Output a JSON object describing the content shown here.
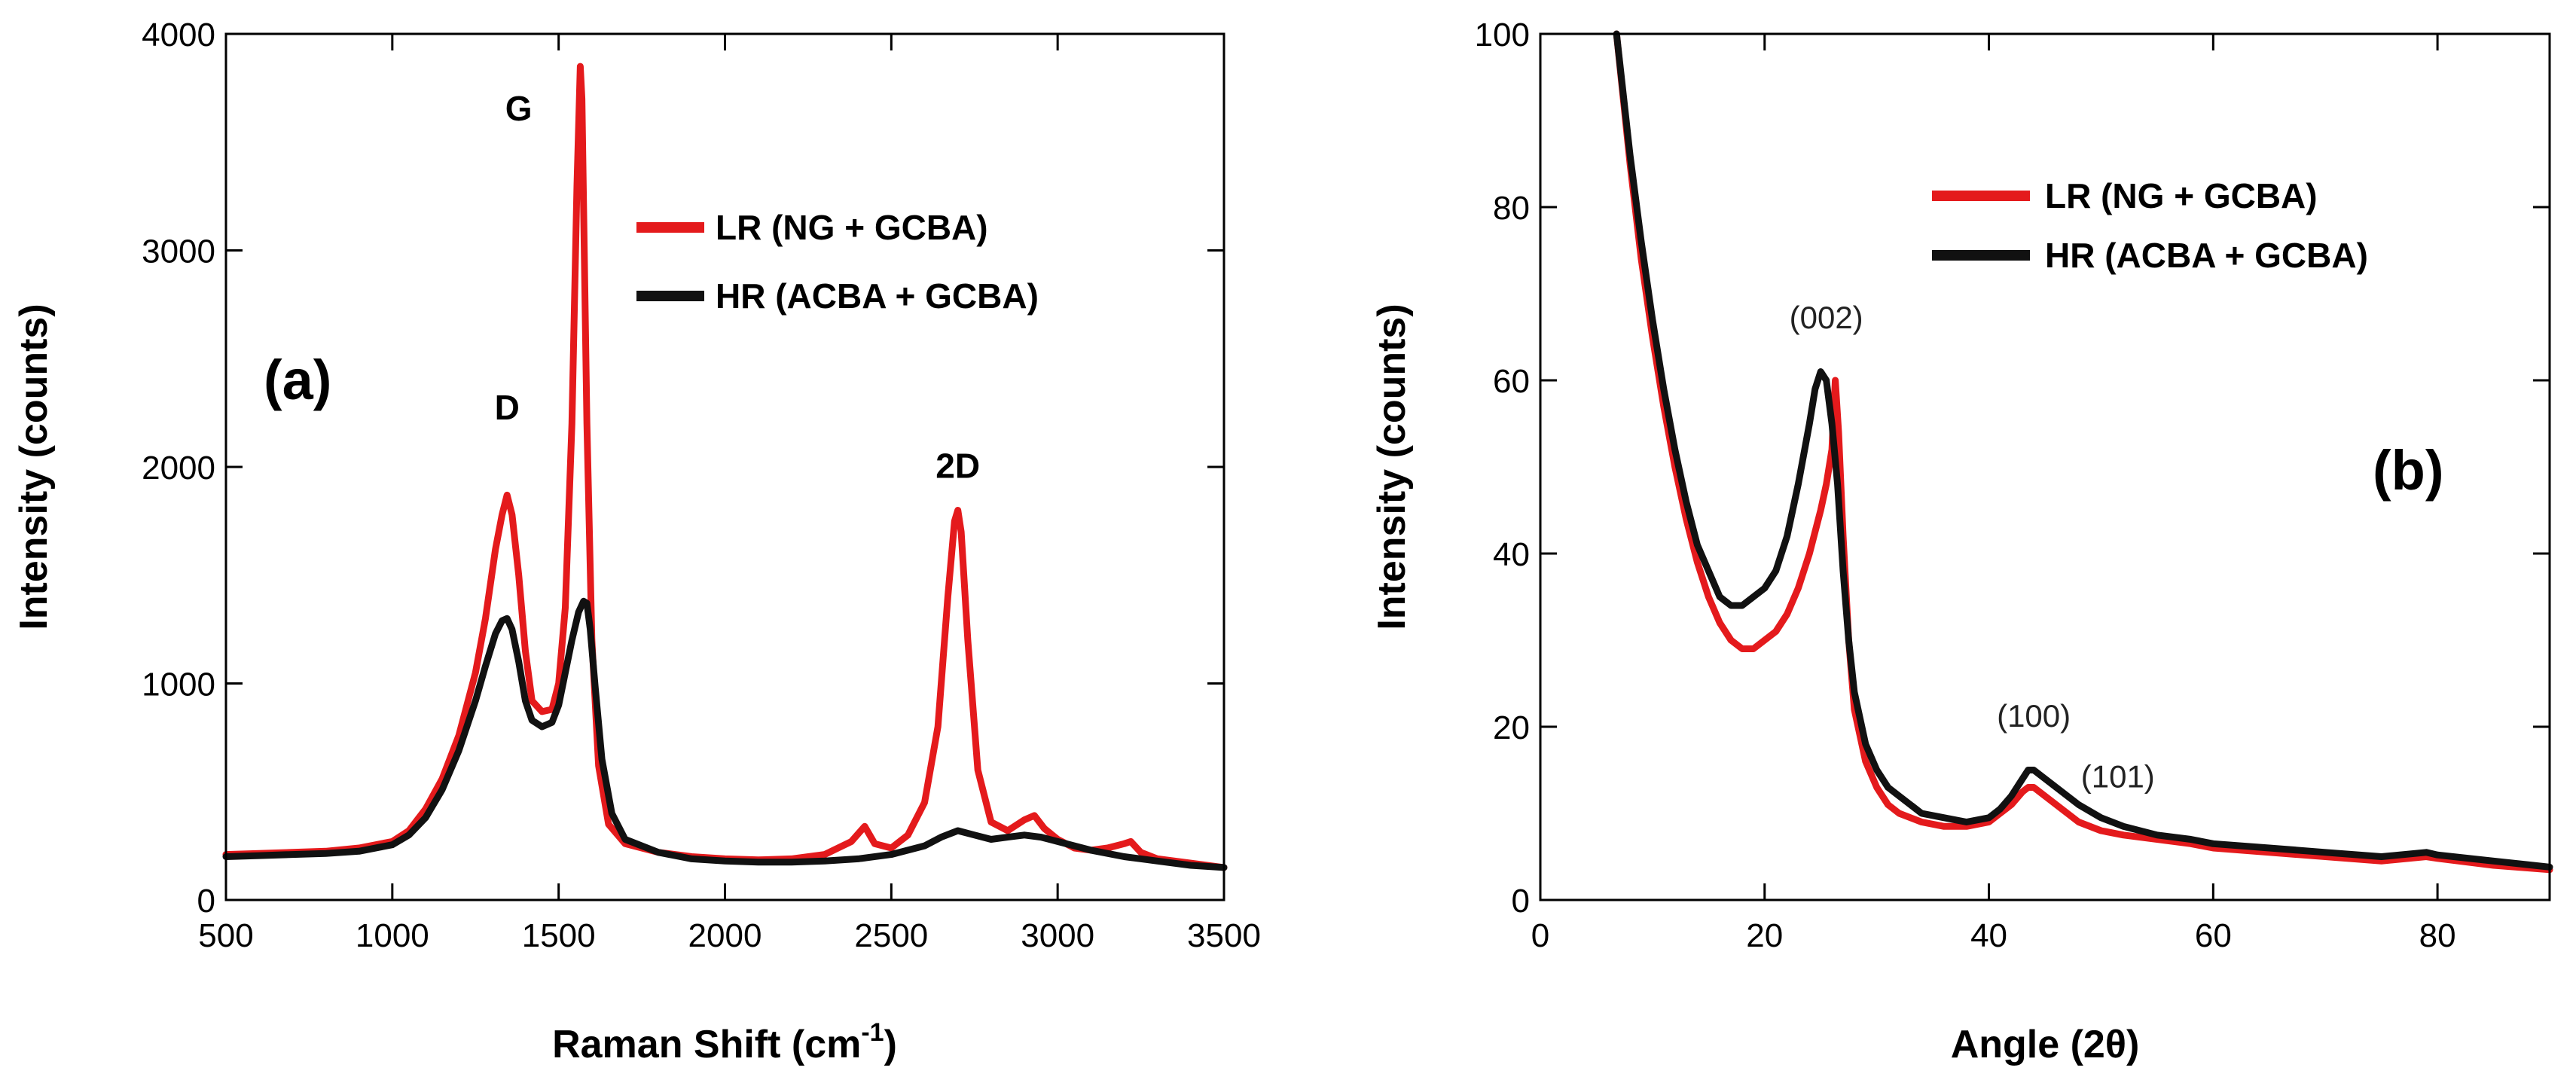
{
  "chart_data": [
    {
      "id": "a",
      "type": "line",
      "panel_label": "(a)",
      "xlabel": "Raman Shift (cm",
      "xlabel_sup": "-1",
      "xlabel_end": ")",
      "ylabel": "Intensity (counts)",
      "xlim": [
        500,
        3500
      ],
      "ylim": [
        0,
        4000
      ],
      "xticks": [
        500,
        1000,
        1500,
        2000,
        2500,
        3000,
        3500
      ],
      "yticks": [
        0,
        1000,
        2000,
        3000,
        4000
      ],
      "legend": {
        "position": "upper-right",
        "entries": [
          "LR (NG + GCBA)",
          "HR (ACBA + GCBA)"
        ]
      },
      "annotations": [
        {
          "text": "D",
          "x": 1345,
          "y": 2220
        },
        {
          "text": "G",
          "x": 1380,
          "y": 3600
        },
        {
          "text": "2D",
          "x": 2700,
          "y": 1950
        }
      ],
      "series": [
        {
          "name": "LR (NG + GCBA)",
          "color": "#e41a1c",
          "x": [
            500,
            600,
            700,
            800,
            900,
            1000,
            1050,
            1100,
            1150,
            1200,
            1250,
            1280,
            1310,
            1330,
            1345,
            1360,
            1380,
            1400,
            1420,
            1450,
            1480,
            1500,
            1520,
            1540,
            1555,
            1565,
            1570,
            1575,
            1585,
            1600,
            1620,
            1650,
            1700,
            1800,
            1900,
            2000,
            2100,
            2200,
            2300,
            2380,
            2420,
            2450,
            2500,
            2550,
            2600,
            2640,
            2670,
            2690,
            2700,
            2710,
            2730,
            2760,
            2800,
            2850,
            2900,
            2930,
            2960,
            3000,
            3050,
            3100,
            3150,
            3200,
            3220,
            3250,
            3300,
            3400,
            3500
          ],
          "y": [
            210,
            215,
            220,
            225,
            240,
            270,
            320,
            420,
            560,
            760,
            1050,
            1300,
            1620,
            1780,
            1870,
            1780,
            1500,
            1150,
            920,
            870,
            880,
            1000,
            1350,
            2200,
            3300,
            3850,
            3700,
            3200,
            2200,
            1200,
            620,
            350,
            260,
            220,
            200,
            190,
            185,
            190,
            210,
            270,
            340,
            260,
            240,
            300,
            450,
            800,
            1400,
            1750,
            1800,
            1700,
            1200,
            600,
            360,
            320,
            370,
            390,
            330,
            280,
            240,
            230,
            240,
            260,
            270,
            220,
            190,
            170,
            150
          ]
        },
        {
          "name": "HR (ACBA + GCBA)",
          "color": "#111111",
          "x": [
            500,
            600,
            700,
            800,
            900,
            1000,
            1050,
            1100,
            1150,
            1200,
            1250,
            1280,
            1310,
            1330,
            1345,
            1360,
            1380,
            1400,
            1420,
            1450,
            1480,
            1500,
            1520,
            1540,
            1560,
            1575,
            1585,
            1595,
            1610,
            1630,
            1660,
            1700,
            1800,
            1900,
            2000,
            2100,
            2200,
            2300,
            2400,
            2500,
            2600,
            2650,
            2700,
            2750,
            2800,
            2850,
            2900,
            2950,
            3000,
            3100,
            3200,
            3300,
            3400,
            3500
          ],
          "y": [
            200,
            205,
            210,
            215,
            225,
            255,
            300,
            380,
            510,
            690,
            920,
            1080,
            1230,
            1290,
            1300,
            1250,
            1100,
            920,
            830,
            800,
            820,
            900,
            1050,
            1200,
            1330,
            1380,
            1370,
            1250,
            980,
            650,
            400,
            280,
            220,
            190,
            180,
            175,
            175,
            180,
            190,
            210,
            250,
            290,
            320,
            300,
            280,
            290,
            300,
            290,
            270,
            230,
            200,
            180,
            160,
            150
          ]
        }
      ]
    },
    {
      "id": "b",
      "type": "line",
      "panel_label": "(b)",
      "xlabel": "Angle (2θ)",
      "ylabel": "Intensity (counts)",
      "xlim": [
        0,
        90
      ],
      "ylim": [
        0,
        100
      ],
      "xticks": [
        0,
        20,
        40,
        60,
        80
      ],
      "yticks": [
        0,
        20,
        40,
        60,
        80,
        100
      ],
      "legend": {
        "position": "upper-right",
        "entries": [
          "LR (NG + GCBA)",
          "HR (ACBA + GCBA)"
        ]
      },
      "annotations": [
        {
          "text": "(002)",
          "x": 25.5,
          "y": 66
        },
        {
          "text": "(100)",
          "x": 44,
          "y": 20
        },
        {
          "text": "(101)",
          "x": 51.5,
          "y": 13
        }
      ],
      "series": [
        {
          "name": "LR (NG + GCBA)",
          "color": "#e41a1c",
          "x": [
            6.8,
            8,
            9,
            10,
            11,
            12,
            13,
            14,
            15,
            16,
            17,
            18,
            19,
            20,
            21,
            22,
            23,
            24,
            25,
            25.5,
            26,
            26.3,
            26.6,
            27,
            27.5,
            28,
            29,
            30,
            31,
            32,
            34,
            36,
            38,
            40,
            41,
            42,
            43,
            43.5,
            44,
            45,
            46,
            48,
            50,
            52,
            55,
            58,
            60,
            65,
            70,
            75,
            79,
            80,
            85,
            90
          ],
          "y": [
            100,
            85,
            74,
            65,
            57,
            50,
            44,
            39,
            35,
            32,
            30,
            29,
            29,
            30,
            31,
            33,
            36,
            40,
            45,
            48,
            52,
            60,
            54,
            42,
            30,
            22,
            16,
            13,
            11,
            10,
            9,
            8.5,
            8.5,
            9,
            10,
            11,
            12.5,
            13,
            13,
            12,
            11,
            9,
            8,
            7.5,
            7,
            6.5,
            6,
            5.5,
            5,
            4.5,
            5,
            4.8,
            4,
            3.5
          ]
        },
        {
          "name": "HR (ACBA + GCBA)",
          "color": "#111111",
          "x": [
            6.8,
            8,
            9,
            10,
            11,
            12,
            13,
            14,
            15,
            16,
            17,
            18,
            19,
            20,
            21,
            22,
            23,
            24,
            24.5,
            25,
            25.5,
            26,
            26.5,
            27,
            27.5,
            28,
            29,
            30,
            31,
            32,
            34,
            36,
            38,
            40,
            41,
            42,
            43,
            43.5,
            44,
            45,
            46,
            48,
            50,
            52,
            55,
            58,
            60,
            65,
            70,
            75,
            79,
            80,
            85,
            90
          ],
          "y": [
            100,
            86,
            76,
            67,
            59,
            52,
            46,
            41,
            38,
            35,
            34,
            34,
            35,
            36,
            38,
            42,
            48,
            55,
            59,
            61,
            60,
            55,
            48,
            38,
            30,
            24,
            18,
            15,
            13,
            12,
            10,
            9.5,
            9,
            9.5,
            10.5,
            12,
            14,
            15,
            15,
            14,
            13,
            11,
            9.5,
            8.5,
            7.5,
            7,
            6.5,
            6,
            5.5,
            5,
            5.5,
            5.2,
            4.5,
            3.8
          ]
        }
      ]
    }
  ]
}
